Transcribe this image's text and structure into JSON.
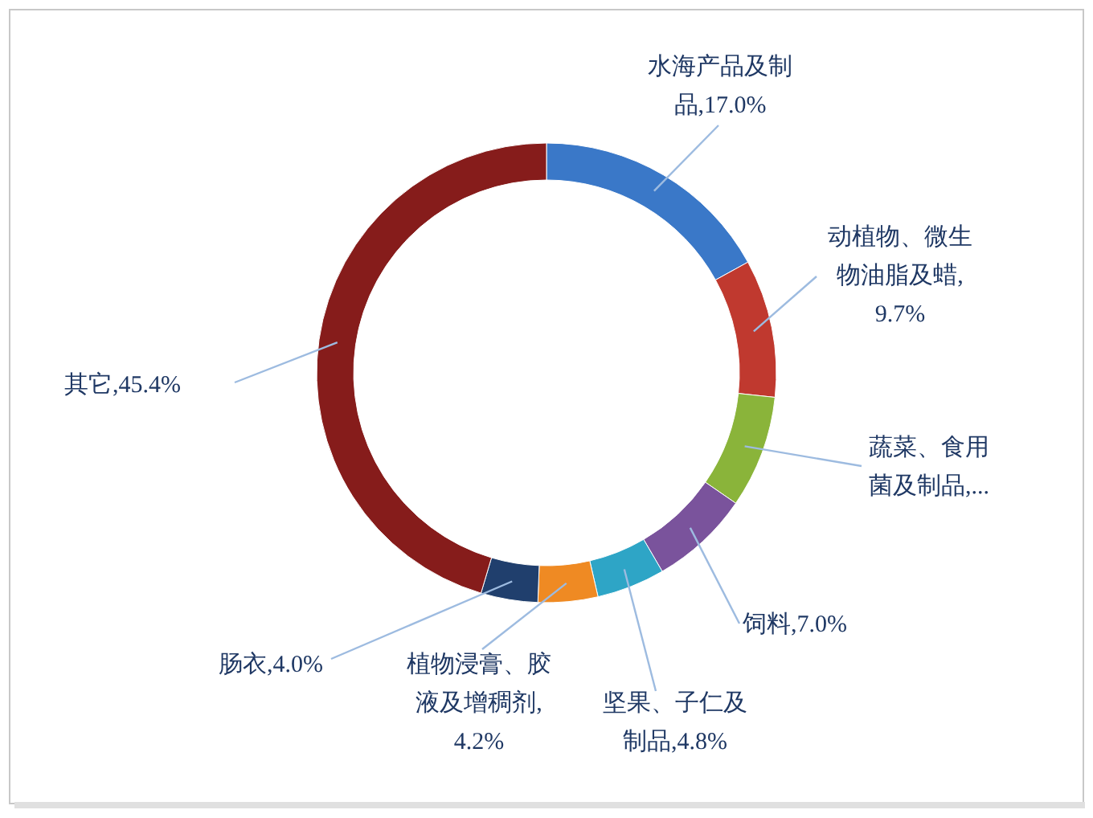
{
  "chart_data": {
    "type": "donut",
    "categories": [
      "水海产品及制品",
      "动植物、微生物油脂及蜡",
      "蔬菜、食用菌及制品",
      "饲料",
      "坚果、子仁及制品",
      "植物浸膏、胶液及增稠剂",
      "肠衣",
      "其它"
    ],
    "values": [
      17.0,
      9.7,
      7.9,
      7.0,
      4.8,
      4.2,
      4.0,
      45.4
    ],
    "colors": [
      "#3a78c8",
      "#c0392f",
      "#8ab43a",
      "#7a539c",
      "#2ea5c6",
      "#ef8a23",
      "#203f6d",
      "#861c1b"
    ],
    "value_labels": [
      ",17.0%",
      ",9.7%",
      ",...",
      ",7.0%",
      ",4.8%",
      ",4.2%",
      ",4.0%",
      ",45.4%"
    ]
  }
}
